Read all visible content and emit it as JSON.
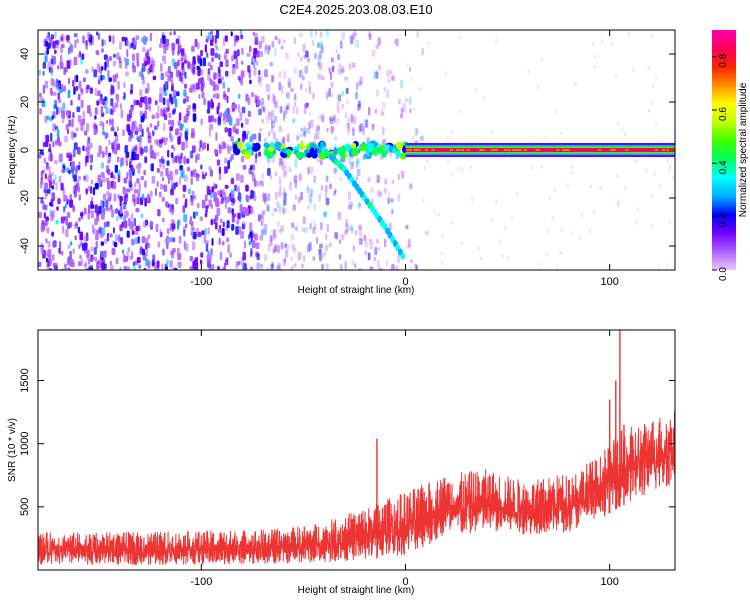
{
  "title": "C2E4.2025.203.08.03.E10",
  "chart_data": [
    {
      "type": "heatmap",
      "xlabel": "Height of straight line (km)",
      "ylabel": "Frequency (Hz)",
      "xlim": [
        -180,
        132
      ],
      "ylim": [
        -50,
        50
      ],
      "xticks": [
        -100,
        0,
        100
      ],
      "yticks": [
        -40,
        -20,
        0,
        20,
        40
      ],
      "colorbar": {
        "label": "Normalized spectral amplitude",
        "ticks": [
          0.0,
          0.2,
          0.4,
          0.6,
          0.8
        ],
        "range": [
          0.0,
          0.9
        ],
        "colormap": [
          "#e8c8ff",
          "#b060ff",
          "#7000ff",
          "#0000ff",
          "#00b0ff",
          "#00ffff",
          "#00ff60",
          "#40ff00",
          "#c0ff00",
          "#ffff00",
          "#ff9000",
          "#ff2000",
          "#ff0060",
          "#ff00b0"
        ]
      },
      "features": {
        "carrier_line": {
          "frequency_hz": 0,
          "x_from_km": 0,
          "x_to_km": 132,
          "amplitude": 0.85
        },
        "noise_region": {
          "x_from_km": -180,
          "x_to_km": 0,
          "amplitude_range": [
            0.05,
            0.35
          ]
        },
        "descending_trace": {
          "points": [
            [
              -40,
              0
            ],
            [
              -30,
              -8
            ],
            [
              -20,
              -20
            ],
            [
              -10,
              -32
            ],
            [
              0,
              -46
            ]
          ],
          "amplitude": 0.25
        },
        "near_zero_cluster": {
          "x_from_km": -85,
          "x_to_km": 0,
          "amplitude": 0.55
        }
      }
    },
    {
      "type": "line",
      "xlabel": "Height of straight line (km)",
      "ylabel": "SNR (10 * v/v)",
      "xlim": [
        -180,
        132
      ],
      "ylim": [
        0,
        1900
      ],
      "xticks": [
        -100,
        0,
        100
      ],
      "yticks": [
        500,
        1000,
        1500
      ],
      "color": "#ee3333",
      "envelope": [
        {
          "x": -180,
          "lo": 40,
          "hi": 300
        },
        {
          "x": -140,
          "lo": 40,
          "hi": 300
        },
        {
          "x": -100,
          "lo": 40,
          "hi": 310
        },
        {
          "x": -60,
          "lo": 50,
          "hi": 330
        },
        {
          "x": -40,
          "lo": 60,
          "hi": 380
        },
        {
          "x": -20,
          "lo": 80,
          "hi": 500
        },
        {
          "x": 0,
          "lo": 120,
          "hi": 620
        },
        {
          "x": 20,
          "lo": 250,
          "hi": 760
        },
        {
          "x": 40,
          "lo": 300,
          "hi": 800
        },
        {
          "x": 60,
          "lo": 280,
          "hi": 700
        },
        {
          "x": 80,
          "lo": 300,
          "hi": 780
        },
        {
          "x": 95,
          "lo": 400,
          "hi": 900
        },
        {
          "x": 105,
          "lo": 500,
          "hi": 1100
        },
        {
          "x": 120,
          "lo": 600,
          "hi": 1200
        },
        {
          "x": 132,
          "lo": 680,
          "hi": 1280
        }
      ],
      "spikes": [
        {
          "x": -14,
          "y": 1040
        },
        {
          "x": 100,
          "y": 1350
        },
        {
          "x": 103,
          "y": 1500
        },
        {
          "x": 105,
          "y": 1900
        },
        {
          "x": 107,
          "y": 1150
        }
      ]
    }
  ]
}
